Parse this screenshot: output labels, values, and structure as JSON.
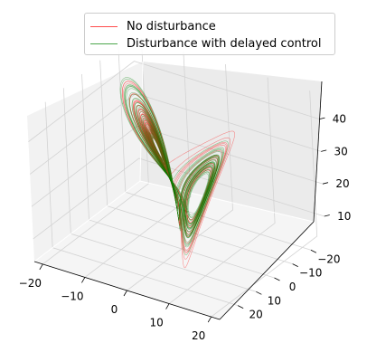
{
  "chart_data": {
    "type": "line",
    "projection": "3d",
    "title": "",
    "xlabel": "",
    "ylabel": "",
    "zlabel": "",
    "xlim": [
      -22,
      22
    ],
    "ylim": [
      -28,
      30
    ],
    "zlim": [
      3,
      48
    ],
    "x_ticks": [
      -20,
      -10,
      0,
      10,
      20
    ],
    "y_ticks": [
      -20,
      -10,
      0,
      10,
      20
    ],
    "z_ticks": [
      10,
      20,
      30,
      40
    ],
    "grid": true,
    "legend_position": "top-center",
    "series": [
      {
        "name": "No disturbance",
        "color": "#ff0000",
        "system": "lorenz",
        "sigma": 10,
        "rho": 28,
        "beta": 2.6667,
        "initial_state": [
          1.0,
          1.0,
          1.0
        ]
      },
      {
        "name": "Disturbance with delayed control",
        "color": "#008000",
        "system": "lorenz",
        "sigma": 10,
        "rho": 28,
        "beta": 2.6667,
        "initial_state": [
          1.05,
          0.95,
          1.1
        ]
      }
    ]
  },
  "legend": {
    "items": [
      {
        "label": "No disturbance",
        "color": "#ff0000"
      },
      {
        "label": "Disturbance with delayed control",
        "color": "#008000"
      }
    ]
  }
}
